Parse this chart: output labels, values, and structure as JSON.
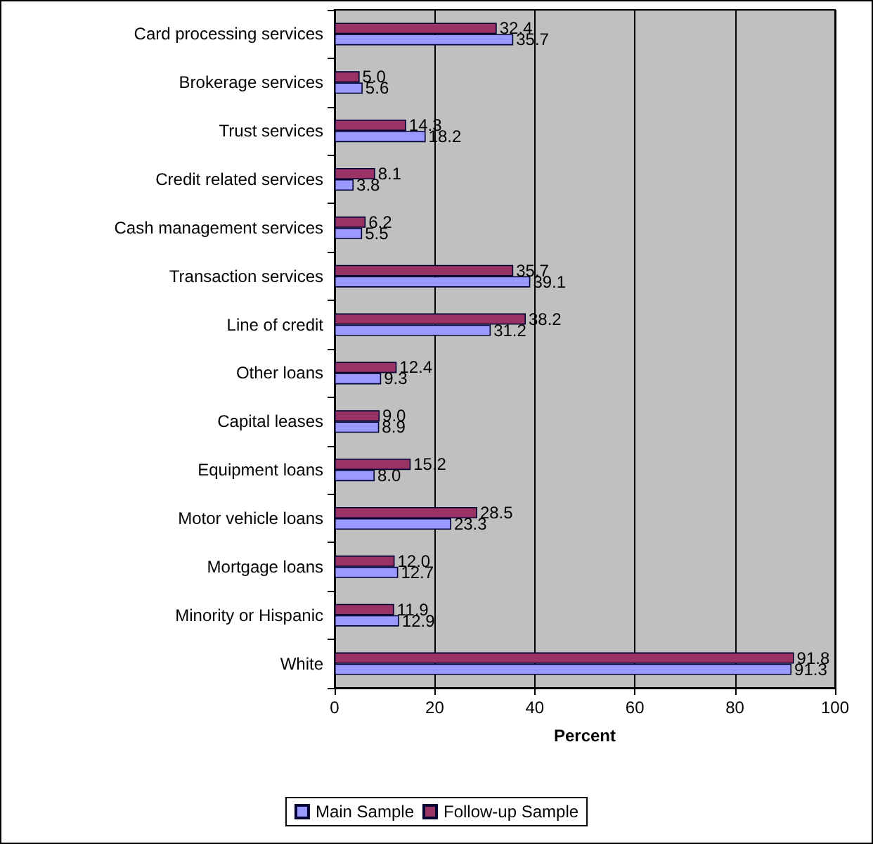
{
  "chart_data": {
    "type": "bar",
    "orientation": "horizontal",
    "xlabel": "Percent",
    "categories": [
      "Card processing services",
      "Brokerage services",
      "Trust services",
      "Credit related services",
      "Cash management services",
      "Transaction services",
      "Line of credit",
      "Other loans",
      "Capital leases",
      "Equipment loans",
      "Motor vehicle loans",
      "Mortgage loans",
      "Minority or Hispanic",
      "White"
    ],
    "series": [
      {
        "name": "Main Sample",
        "color": "#9999ff",
        "values": [
          35.7,
          5.6,
          18.2,
          3.8,
          5.5,
          39.1,
          31.2,
          9.3,
          8.9,
          8.0,
          23.3,
          12.7,
          12.9,
          91.3
        ],
        "value_labels": [
          "35.7",
          "5.6",
          "18.2",
          "3.8",
          "5.5",
          "39.1",
          "31.2",
          "9.3",
          "8.9",
          "8.0",
          "23.3",
          "12.7",
          "12.9",
          "91.3"
        ]
      },
      {
        "name": "Follow-up Sample",
        "color": "#993366",
        "values": [
          32.4,
          5.0,
          14.3,
          8.1,
          6.2,
          35.7,
          38.2,
          12.4,
          9.0,
          15.2,
          28.5,
          12.0,
          11.9,
          91.8
        ],
        "value_labels": [
          "32.4",
          "5.0",
          "14.3",
          "8.1",
          "6.2",
          "35.7",
          "38.2",
          "12.4",
          "9.0",
          "15.2",
          "28.5",
          "12.0",
          "11.9",
          "91.8"
        ]
      }
    ],
    "xlim": [
      0,
      100
    ],
    "xticks": [
      0,
      20,
      40,
      60,
      80,
      100
    ],
    "grid": "x",
    "legend": "bottom"
  }
}
